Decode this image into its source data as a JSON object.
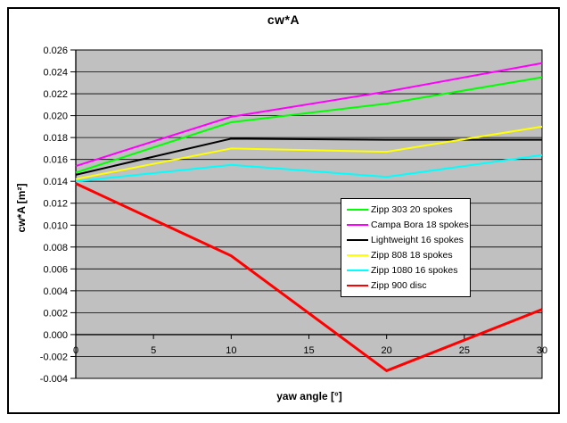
{
  "chart_data": {
    "type": "line",
    "title": "cw*A",
    "xlabel": "yaw angle [°]",
    "ylabel": "cw*A [m²]",
    "x": [
      0,
      10,
      20,
      30
    ],
    "xlim": [
      0,
      30
    ],
    "ylim": [
      -0.004,
      0.026
    ],
    "y_tick_step": 0.002,
    "x_ticks": [
      0,
      5,
      10,
      15,
      20,
      25,
      30
    ],
    "x_tick_labels": [
      "0",
      "5",
      "10",
      "15",
      "20",
      "25",
      "30"
    ],
    "y_tick_labels": [
      "0.026",
      "0.024",
      "0.022",
      "0.020",
      "0.018",
      "0.016",
      "0.014",
      "0.012",
      "0.010",
      "0.008",
      "0.006",
      "0.004",
      "0.002",
      "0.000",
      "-0.002",
      "-0.004"
    ],
    "grid": true,
    "plot_bg": "#c0c0c0",
    "gridline_color": "#000000",
    "legend_position": "inside-center-right",
    "series": [
      {
        "name": "Zipp 303 20 spokes",
        "color": "#00ff00",
        "values": [
          0.0148,
          0.0194,
          0.0211,
          0.0235
        ]
      },
      {
        "name": "Campa Bora 18 spokes",
        "color": "#ff00ff",
        "values": [
          0.0154,
          0.0199,
          0.0222,
          0.0248
        ]
      },
      {
        "name": "Lightweight 16 spokes",
        "color": "#000000",
        "values": [
          0.0146,
          0.0179,
          0.0178,
          0.0178
        ]
      },
      {
        "name": "Zipp 808 18 spokes",
        "color": "#ffff00",
        "values": [
          0.0142,
          0.017,
          0.0167,
          0.019
        ]
      },
      {
        "name": "Zipp 1080 16 spokes",
        "color": "#00ffff",
        "values": [
          0.014,
          0.0155,
          0.0144,
          0.0164
        ]
      },
      {
        "name": "Zipp 900 disc",
        "color": "#ff0000",
        "values": [
          0.0138,
          0.0072,
          -0.0033,
          0.0023
        ]
      }
    ]
  }
}
